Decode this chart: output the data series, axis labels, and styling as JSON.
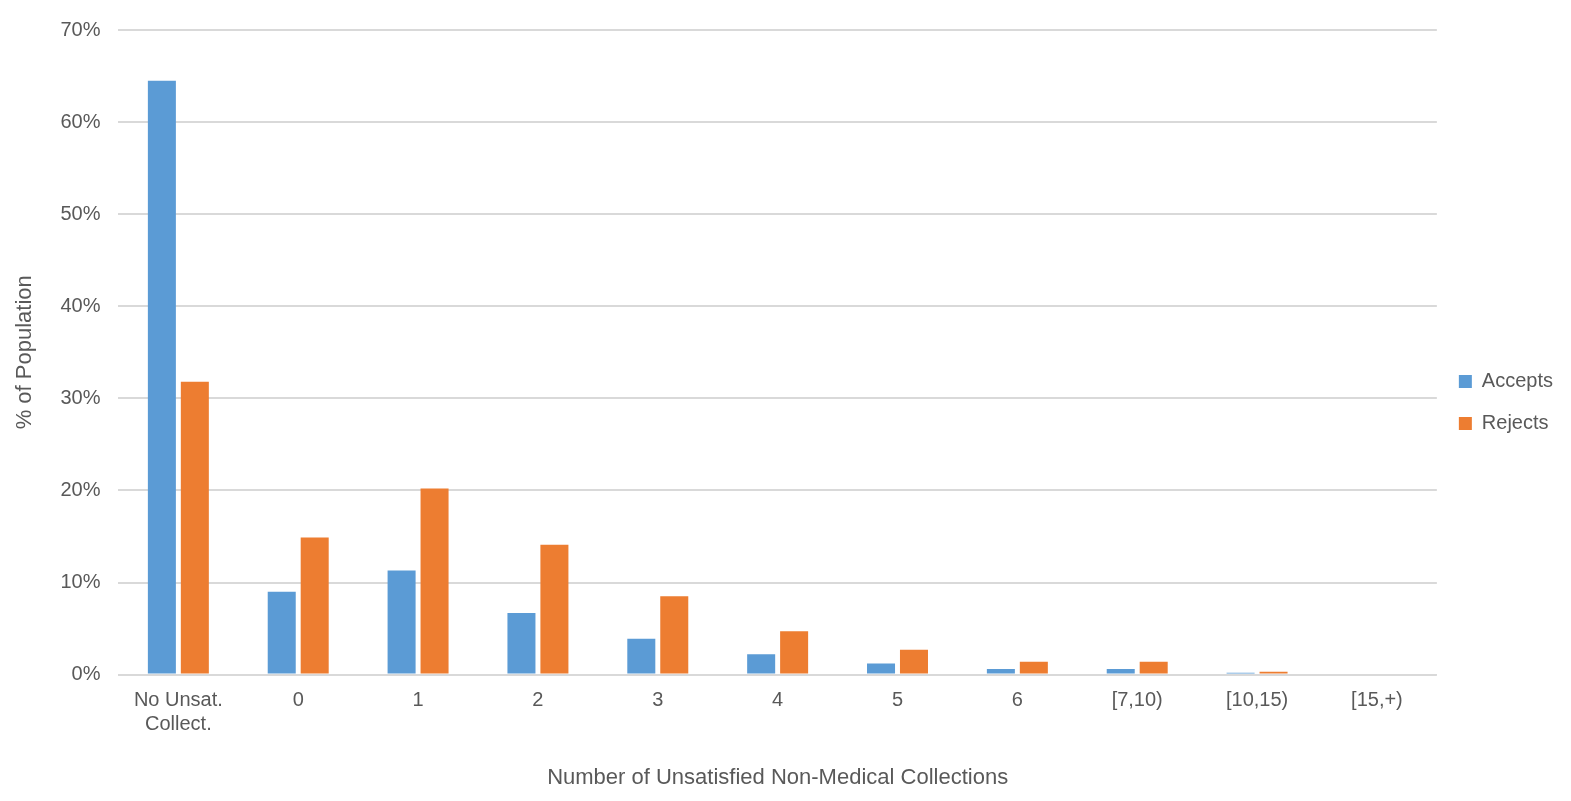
{
  "chart_data": {
    "type": "bar",
    "xlabel": "Number of Unsatisfied Non-Medical Collections",
    "ylabel": "% of Population",
    "categories": [
      "No Unsat.\nCollect.",
      "0",
      "1",
      "2",
      "3",
      "4",
      "5",
      "6",
      "[7,10)",
      "[10,15)",
      "[15,+)"
    ],
    "series": [
      {
        "name": "Accepts",
        "color": "#5b9bd5",
        "values": [
          64.5,
          9.0,
          11.3,
          6.7,
          3.9,
          2.2,
          1.2,
          0.6,
          0.6,
          0.2,
          0
        ]
      },
      {
        "name": "Rejects",
        "color": "#ed7d31",
        "values": [
          31.8,
          14.9,
          20.2,
          14.1,
          8.5,
          4.7,
          2.7,
          1.4,
          1.4,
          0.3,
          0
        ]
      }
    ],
    "ylim": [
      0,
      70
    ],
    "yticks": [
      {
        "value": 0,
        "label": "0%"
      },
      {
        "value": 10,
        "label": "10%"
      },
      {
        "value": 20,
        "label": "20%"
      },
      {
        "value": 30,
        "label": "30%"
      },
      {
        "value": 40,
        "label": "40%"
      },
      {
        "value": 50,
        "label": "50%"
      },
      {
        "value": 60,
        "label": "60%"
      },
      {
        "value": 70,
        "label": "70%"
      }
    ],
    "grid": "y",
    "legend": "right"
  }
}
